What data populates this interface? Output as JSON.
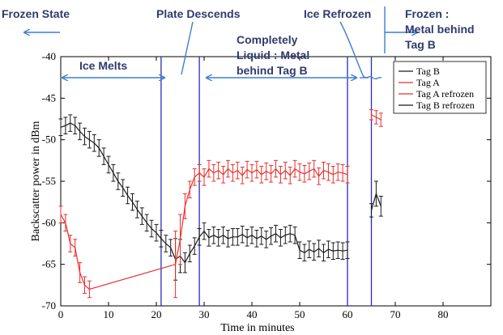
{
  "chart_data": {
    "type": "line",
    "xlabel": "Time in minutes",
    "ylabel": "Backscatter power in dBm",
    "xlim": [
      0,
      90
    ],
    "ylim": [
      -70,
      -40
    ],
    "xticks": [
      "0",
      "10",
      "20",
      "30",
      "40",
      "50",
      "60",
      "70",
      "80"
    ],
    "xtick_values": [
      0,
      10,
      20,
      30,
      40,
      50,
      60,
      70,
      80
    ],
    "yticks": [
      "-40",
      "-45",
      "-50",
      "-55",
      "-60",
      "-65",
      "-70"
    ],
    "ytick_values": [
      -40,
      -45,
      -50,
      -55,
      -60,
      -65,
      -70
    ],
    "grid": false,
    "legend": {
      "placement": "top-right",
      "entries": [
        "Tag B",
        "Tag A",
        "Tag A refrozen",
        "Tag B refrozen"
      ]
    },
    "colors": {
      "tag_a": "#e8302c",
      "tag_b": "#1a1a1a",
      "marker_lines": "#2b2bb8",
      "annotation": "#3a7fd0"
    },
    "series": [
      {
        "name": "Tag B",
        "color": "#1a1a1a",
        "x": [
          0,
          1,
          2,
          3,
          4,
          5,
          6,
          7,
          8,
          9,
          10,
          11,
          12,
          13,
          14,
          15,
          16,
          17,
          18,
          19,
          20,
          21,
          22,
          23,
          24,
          25,
          26,
          27,
          28,
          29,
          30,
          31,
          32,
          33,
          34,
          35,
          36,
          37,
          38,
          39,
          40,
          41,
          42,
          43,
          44,
          45,
          46,
          47,
          48,
          49,
          50,
          51,
          52,
          53,
          54,
          55,
          56,
          57,
          58,
          59,
          60
        ],
        "y": [
          -48.5,
          -48.3,
          -48.0,
          -48.3,
          -49.0,
          -49.6,
          -50.0,
          -50.4,
          -51.0,
          -52.0,
          -53.0,
          -54.0,
          -55.0,
          -55.8,
          -56.7,
          -57.5,
          -58.4,
          -59.2,
          -60.0,
          -60.7,
          -61.2,
          -61.9,
          -62.5,
          -63.0,
          -64.4,
          -64.0,
          -64.8,
          -63.7,
          -62.8,
          -61.7,
          -61.0,
          -61.8,
          -61.5,
          -61.8,
          -61.5,
          -61.9,
          -61.7,
          -61.7,
          -61.4,
          -61.8,
          -61.5,
          -61.9,
          -61.6,
          -62.0,
          -61.6,
          -61.3,
          -61.8,
          -61.5,
          -61.3,
          -61.5,
          -63.3,
          -63.6,
          -63.2,
          -63.5,
          -63.1,
          -63.6,
          -63.2,
          -63.4,
          -63.3,
          -63.4,
          -63.3
        ],
        "err": [
          1.0,
          1.0,
          1.0,
          1.0,
          1.0,
          1.0,
          1.0,
          1.0,
          1.0,
          1.0,
          1.0,
          1.0,
          1.0,
          1.0,
          1.0,
          1.0,
          1.0,
          1.0,
          1.0,
          1.0,
          1.0,
          1.0,
          1.0,
          1.0,
          2.5,
          2.0,
          1.2,
          1.0,
          1.0,
          1.0,
          1.0,
          1.0,
          1.0,
          1.0,
          1.0,
          1.0,
          1.0,
          1.0,
          1.0,
          1.0,
          1.0,
          1.0,
          1.0,
          1.0,
          1.0,
          1.0,
          1.0,
          1.0,
          1.0,
          1.0,
          1.0,
          1.0,
          1.0,
          1.0,
          1.0,
          1.0,
          1.0,
          1.0,
          1.0,
          1.0,
          1.0
        ]
      },
      {
        "name": "Tag A",
        "color": "#e8302c",
        "x": [
          0,
          1,
          2,
          3,
          4,
          5,
          6,
          24,
          25,
          26,
          27,
          28,
          29,
          30,
          31,
          32,
          33,
          34,
          35,
          36,
          37,
          38,
          39,
          40,
          41,
          42,
          43,
          44,
          45,
          46,
          47,
          48,
          49,
          50,
          51,
          52,
          53,
          54,
          55,
          56,
          57,
          58,
          59,
          60
        ],
        "y": [
          -59.0,
          -60.0,
          -62.5,
          -63.0,
          -66.0,
          -67.5,
          -68.0,
          -65.0,
          -62.0,
          -58.0,
          -56.0,
          -54.5,
          -54.0,
          -54.5,
          -53.5,
          -54.0,
          -53.7,
          -54.2,
          -53.5,
          -54.0,
          -53.7,
          -54.3,
          -53.6,
          -54.0,
          -53.6,
          -54.2,
          -53.8,
          -54.1,
          -53.5,
          -54.2,
          -53.7,
          -54.3,
          -53.5,
          -53.9,
          -54.1,
          -53.8,
          -53.5,
          -54.4,
          -53.7,
          -53.9,
          -54.2,
          -53.9,
          -54.0,
          -54.2
        ],
        "err": [
          1.0,
          1.0,
          1.0,
          1.0,
          1.2,
          1.0,
          1.0,
          4.0,
          3.0,
          1.5,
          1.0,
          1.0,
          1.0,
          1.0,
          1.0,
          1.0,
          1.0,
          1.0,
          1.0,
          1.0,
          1.0,
          1.0,
          1.0,
          1.0,
          1.0,
          1.0,
          1.0,
          1.0,
          1.0,
          1.0,
          1.0,
          1.0,
          1.0,
          1.0,
          1.0,
          1.0,
          1.0,
          1.0,
          1.0,
          1.0,
          1.0,
          1.0,
          1.0,
          1.0
        ]
      },
      {
        "name": "Tag A refrozen",
        "color": "#e8302c",
        "x": [
          65,
          66,
          67
        ],
        "y": [
          -47.0,
          -47.3,
          -47.6
        ],
        "err": [
          0.6,
          0.8,
          0.8
        ]
      },
      {
        "name": "Tag B refrozen",
        "color": "#1a1a1a",
        "x": [
          65,
          66,
          67
        ],
        "y": [
          -58.5,
          -56.5,
          -58.0
        ],
        "err": [
          0.8,
          1.5,
          1.2
        ]
      }
    ],
    "vertical_lines": [
      21,
      29,
      60,
      65
    ],
    "annotations": [
      {
        "text": "Frozen State"
      },
      {
        "text": "Plate Descends"
      },
      {
        "text": "Ice Refrozen"
      },
      {
        "text": "Frozen :"
      },
      {
        "text": "Metal behind"
      },
      {
        "text": "Tag B"
      },
      {
        "text": "Ice Melts"
      },
      {
        "text": "Completely"
      },
      {
        "text": "Liquid : Metal"
      },
      {
        "text": "behind Tag B"
      }
    ]
  }
}
